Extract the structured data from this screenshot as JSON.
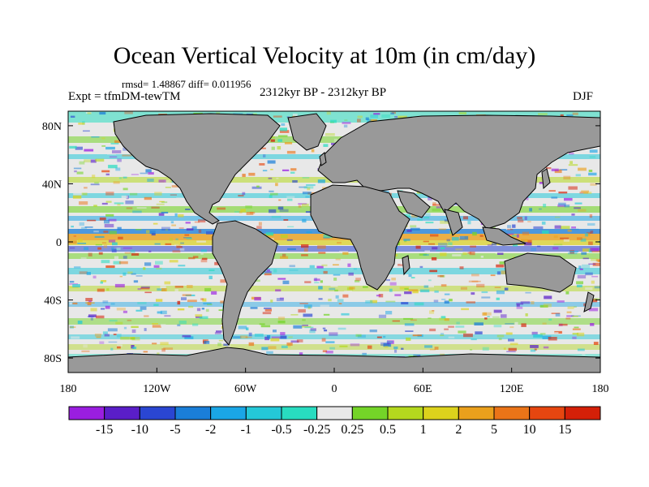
{
  "title": "Ocean Vertical Velocity at 10m (in cm/day)",
  "stats": "rmsd= 1.48867 diff= 0.011956",
  "experiment": "Expt = tfmDM-tewTM",
  "period": "2312kyr BP - 2312kyr BP",
  "season": "DJF",
  "colors": {
    "land": "#999999",
    "coast": "#000000",
    "ocean_neutral": "#e8e8e8"
  },
  "lat_labels": [
    "80N",
    "40N",
    "0",
    "40S",
    "80S"
  ],
  "lon_labels": [
    "180",
    "120W",
    "60W",
    "0",
    "60E",
    "120E",
    "180"
  ],
  "colorbar": {
    "labels": [
      "-15",
      "-10",
      "-5",
      "-2",
      "-1",
      "-0.5",
      "-0.25",
      "0.25",
      "0.5",
      "1",
      "2",
      "5",
      "10",
      "15"
    ],
    "colors": [
      "#9a1ee0",
      "#5a1ec8",
      "#2a46d2",
      "#1a7ed8",
      "#1aa6e6",
      "#24c8d8",
      "#28dcc0",
      "#e8e8e8",
      "#74d428",
      "#b4d81e",
      "#dcd21c",
      "#eaa01c",
      "#ea7418",
      "#e64610",
      "#d42008"
    ]
  }
}
